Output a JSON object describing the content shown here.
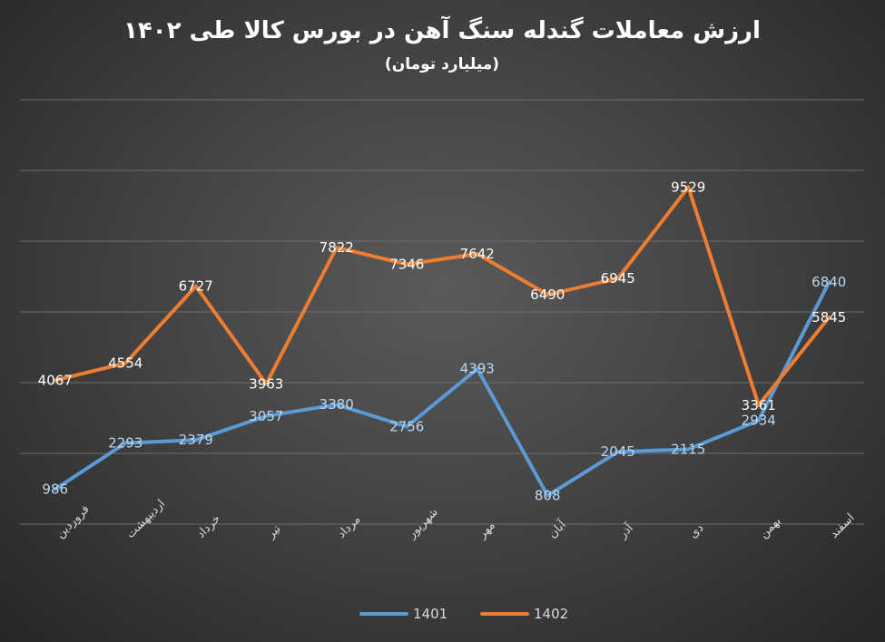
{
  "chart_data": {
    "type": "line",
    "title": "ارزش معاملات گندله سنگ آهن در بورس کالا طی ۱۴۰۲",
    "subtitle": "(میلیارد تومان)",
    "categories": [
      "فروردین",
      "اردیبهشت",
      "خرداد",
      "تیر",
      "مرداد",
      "شهریور",
      "مهر",
      "آبان",
      "آذر",
      "دی",
      "بهمن",
      "اسفند"
    ],
    "ylim": [
      0,
      12000
    ],
    "grid": true,
    "legend_position": "bottom",
    "series": [
      {
        "name": "1401",
        "color": "#5b9bd5",
        "label_color": "#bdd7ee",
        "values": [
          986,
          2293,
          2379,
          3057,
          3380,
          2756,
          4393,
          808,
          2045,
          2115,
          2934,
          6840
        ]
      },
      {
        "name": "1402",
        "color": "#ed7d31",
        "label_color": "#ffffff",
        "values": [
          4067,
          4554,
          6727,
          3963,
          7822,
          7346,
          7642,
          6490,
          6945,
          9529,
          3361,
          5845
        ]
      }
    ]
  }
}
